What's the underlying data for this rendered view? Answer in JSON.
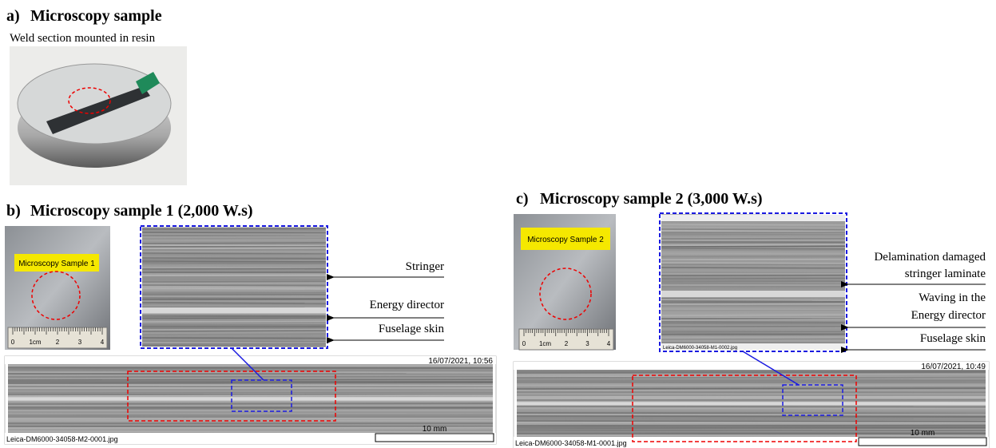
{
  "panels": [
    {
      "label": "a)",
      "title": "Microscopy sample",
      "caption": "Weld section mounted in resin"
    },
    {
      "label": "b)",
      "title": "Microscopy sample 1 (2,000 W.s)",
      "sample_tag": "Microscopy Sample 1",
      "ruler": [
        "0",
        "1cm",
        "2",
        "3",
        "4"
      ],
      "annotations": [
        {
          "lines": [
            "Stringer"
          ]
        },
        {
          "lines": [
            "Energy director"
          ]
        },
        {
          "lines": [
            "Fuselage skin"
          ]
        }
      ],
      "timestamp": "16/07/2021, 10:56",
      "filename": "Leica-DM6000-34058-M2-0001.jpg",
      "scale_bar": "10 mm"
    },
    {
      "label": "c)",
      "title": "Microscopy sample 2 (3,000 W.s)",
      "sample_tag": "Microscopy Sample 2",
      "ruler": [
        "0",
        "1cm",
        "2",
        "3",
        "4"
      ],
      "annotations": [
        {
          "lines": [
            "Delamination damaged",
            "stringer laminate"
          ]
        },
        {
          "lines": [
            "Waving in the",
            "Energy director"
          ]
        },
        {
          "lines": [
            "Fuselage skin"
          ]
        }
      ],
      "inset_filename": "Leica-DM6000-34058-M1-0002.jpg",
      "timestamp": "16/07/2021, 10:49",
      "filename": "Leica-DM6000-34058-M1-0001.jpg",
      "scale_bar": "10 mm"
    }
  ]
}
